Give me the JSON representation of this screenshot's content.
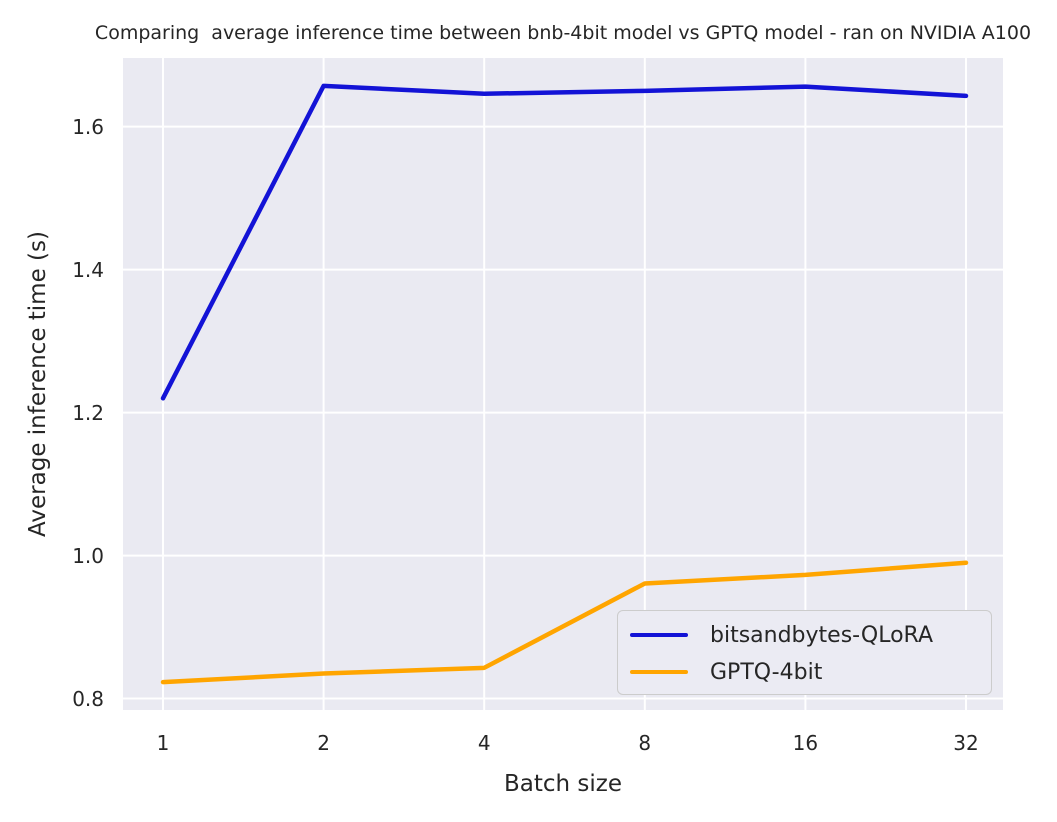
{
  "figure": {
    "background": "#ffffff",
    "text_color": "#262626"
  },
  "chart_data": {
    "type": "line",
    "title": "Comparing  average inference time between bnb-4bit model vs GPTQ model - ran on NVIDIA A100",
    "xlabel": "Batch size",
    "ylabel": "Average inference time (s)",
    "categories": [
      "1",
      "2",
      "4",
      "8",
      "16",
      "32"
    ],
    "x_scale": "categorical (powers of 2)",
    "y_ticks": [
      0.8,
      1.0,
      1.2,
      1.4,
      1.6
    ],
    "y_tick_labels": [
      "0.8",
      "1.0",
      "1.2",
      "1.4",
      "1.6"
    ],
    "ylim": [
      0.784,
      1.696
    ],
    "grid": true,
    "grid_color": "#ffffff",
    "plot_background": "#eaeaf2",
    "legend_position": "lower right",
    "legend_background": "#ebebf3",
    "legend_border_color": "#cccccc",
    "series": [
      {
        "name": "bitsandbytes-QLoRA",
        "color": "#1313d6",
        "values": [
          1.22,
          1.657,
          1.646,
          1.65,
          1.656,
          1.643
        ]
      },
      {
        "name": "GPTQ-4bit",
        "color": "#ffa500",
        "values": [
          0.823,
          0.835,
          0.843,
          0.961,
          0.973,
          0.99
        ]
      }
    ]
  }
}
